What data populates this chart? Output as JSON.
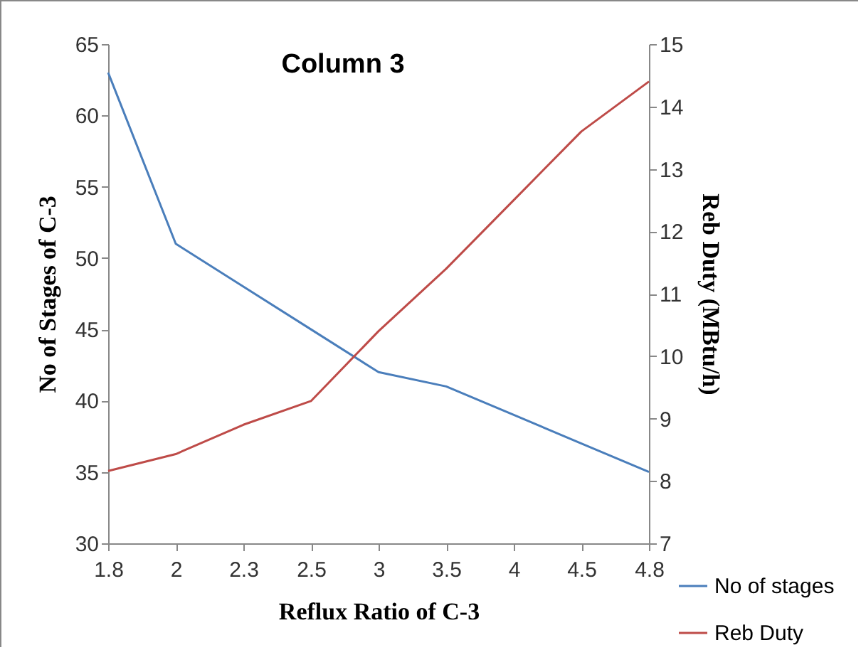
{
  "chart_data": {
    "type": "line",
    "title": "Column 3",
    "xlabel": "Reflux Ratio of C-3",
    "ylabel": "No of Stages of C-3",
    "y2label": "Reb Duty (MBtu/h)",
    "categories": [
      "1.8",
      "2",
      "2.3",
      "2.5",
      "3",
      "3.5",
      "4",
      "4.5",
      "4.8"
    ],
    "series": [
      {
        "name": "No of stages",
        "color": "#4a7ebb",
        "values": [
          63,
          51,
          48,
          45,
          42,
          41,
          39,
          37,
          35
        ]
      },
      {
        "name": "Reb Duty",
        "color": "#be4b48",
        "axis": "y2",
        "values": [
          8.16,
          8.43,
          8.9,
          9.28,
          10.4,
          11.4,
          12.5,
          13.6,
          14.4
        ]
      }
    ],
    "ylim": [
      30,
      65
    ],
    "yticks": [
      30,
      35,
      40,
      45,
      50,
      55,
      60,
      65
    ],
    "y2lim": [
      7,
      15
    ],
    "y2ticks": [
      7,
      8,
      9,
      10,
      11,
      12,
      13,
      14,
      15
    ],
    "grid": false,
    "legend": "bottom right",
    "marker": "none",
    "line_style": "solid"
  }
}
